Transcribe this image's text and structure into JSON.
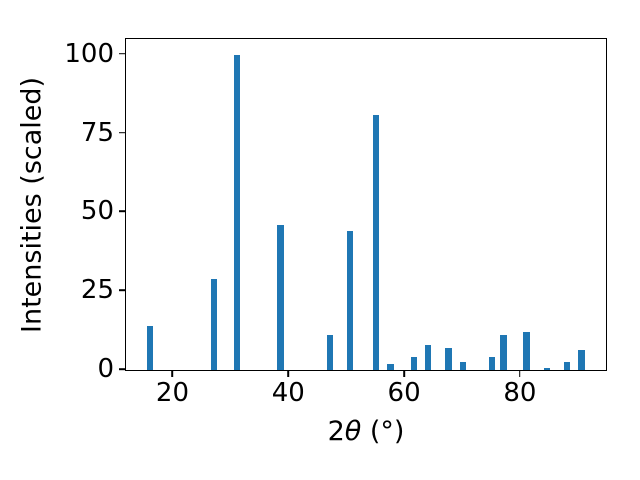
{
  "chart_data": {
    "type": "bar",
    "title": "",
    "xlabel": {
      "prefix": "2",
      "theta": "θ",
      "suffix": " (°)"
    },
    "ylabel": "Intensities (scaled)",
    "x": [
      16,
      27,
      31,
      38.5,
      47,
      50.5,
      55,
      57.5,
      61.5,
      64,
      67.5,
      70,
      75,
      77,
      81,
      84.5,
      88,
      90.5
    ],
    "values": [
      14,
      29,
      100,
      46,
      11,
      44,
      81,
      2,
      4,
      8,
      7,
      2.5,
      4,
      11,
      12,
      0.7,
      2.5,
      6.5
    ],
    "bar_color": "#1f77b4",
    "bar_width_data_units": 1.1,
    "xlim": [
      11.8,
      94.7
    ],
    "ylim": [
      0,
      105
    ],
    "xticks": [
      20,
      40,
      60,
      80
    ],
    "yticks": [
      0,
      25,
      50,
      75,
      100
    ],
    "grid": false,
    "legend": null,
    "background": "#ffffff",
    "spine_color": "#000000"
  }
}
